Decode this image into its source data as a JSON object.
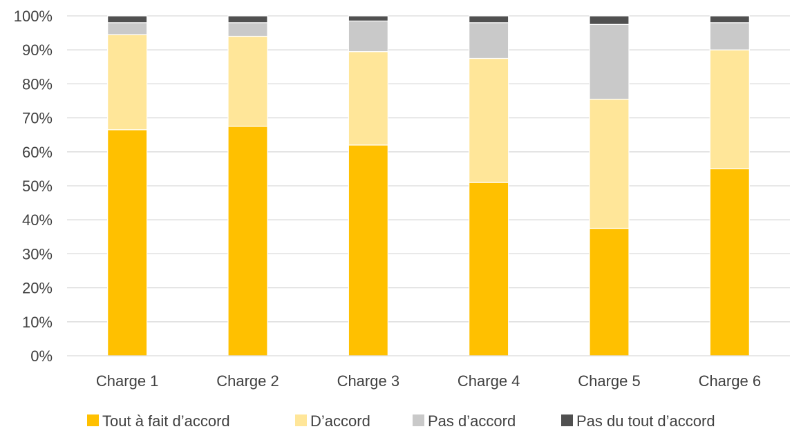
{
  "chart_data": {
    "type": "bar",
    "stacked": true,
    "categories": [
      "Charge 1",
      "Charge 2",
      "Charge 3",
      "Charge 4",
      "Charge 5",
      "Charge 6"
    ],
    "series": [
      {
        "name": "Tout à fait d’accord",
        "color": "#FFC000",
        "values": [
          66.5,
          67.5,
          62.0,
          51.0,
          37.5,
          55.0
        ]
      },
      {
        "name": "D’accord",
        "color": "#FFE699",
        "values": [
          28.0,
          26.5,
          27.5,
          36.5,
          38.0,
          35.0
        ]
      },
      {
        "name": "Pas d’accord",
        "color": "#C9C9C9",
        "values": [
          3.5,
          4.0,
          9.0,
          10.5,
          22.0,
          8.0
        ]
      },
      {
        "name": "Pas du tout d’accord",
        "color": "#505050",
        "values": [
          2.0,
          2.0,
          1.5,
          2.0,
          2.5,
          2.0
        ]
      }
    ],
    "y_ticks": [
      "0%",
      "10%",
      "20%",
      "30%",
      "40%",
      "50%",
      "60%",
      "70%",
      "80%",
      "90%",
      "100%"
    ],
    "ylim": [
      0,
      100
    ],
    "grid": true,
    "legend_position": "bottom"
  }
}
